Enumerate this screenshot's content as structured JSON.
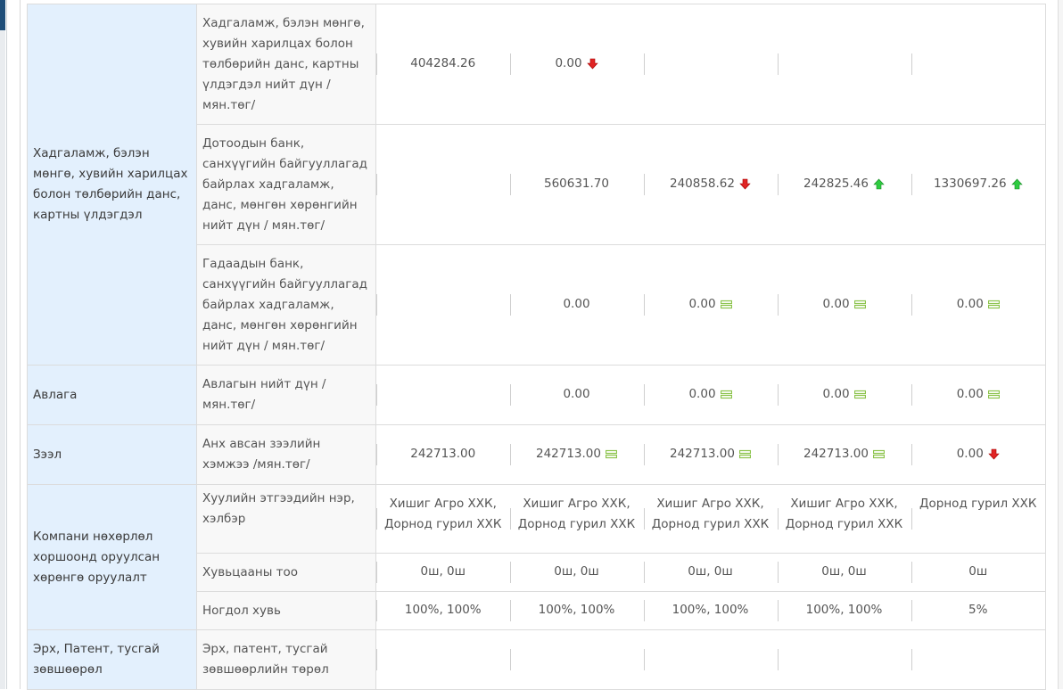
{
  "rows": [
    {
      "category": "Хадгаламж, бэлэн мөнгө, хувийн харилцах болон төлбөрийн данс, картны үлдэгдэл",
      "indicator": "Хадгаламж, бэлэн мөнгө, хувийн харилцах болон төлбөрийн данс, картны үлдэгдэл нийт дүн / мян.төг/",
      "values": [
        {
          "text": "404284.26",
          "icon": "none"
        },
        {
          "text": "0.00",
          "icon": "arrow-down-red-icon"
        },
        {
          "text": "",
          "icon": "none"
        },
        {
          "text": "",
          "icon": "none"
        },
        {
          "text": "",
          "icon": "none"
        }
      ]
    },
    {
      "indicator": "Дотоодын банк, санхүүгийн байгууллагад байрлах хадгаламж, данс, мөнгөн хөрөнгийн нийт дүн / мян.төг/",
      "values": [
        {
          "text": "",
          "icon": "none"
        },
        {
          "text": "560631.70",
          "icon": "none"
        },
        {
          "text": "240858.62",
          "icon": "arrow-down-red-icon"
        },
        {
          "text": "242825.46",
          "icon": "arrow-up-green-icon"
        },
        {
          "text": "1330697.26",
          "icon": "arrow-up-green-icon"
        }
      ]
    },
    {
      "indicator": "Гадаадын банк, санхүүгийн байгууллагад байрлах хадгаламж, данс, мөнгөн хөрөнгийн нийт дүн / мян.төг/",
      "values": [
        {
          "text": "",
          "icon": "none"
        },
        {
          "text": "0.00",
          "icon": "none"
        },
        {
          "text": "0.00",
          "icon": "equal-green-icon"
        },
        {
          "text": "0.00",
          "icon": "equal-green-icon"
        },
        {
          "text": "0.00",
          "icon": "equal-green-icon"
        }
      ]
    },
    {
      "category": "Авлага",
      "indicator": "Авлагын нийт дүн / мян.төг/",
      "values": [
        {
          "text": "",
          "icon": "none"
        },
        {
          "text": "0.00",
          "icon": "none"
        },
        {
          "text": "0.00",
          "icon": "equal-green-icon"
        },
        {
          "text": "0.00",
          "icon": "equal-green-icon"
        },
        {
          "text": "0.00",
          "icon": "equal-green-icon"
        }
      ]
    },
    {
      "category": "Зээл",
      "indicator": "Анх авсан зээлийн хэмжээ /мян.төг/",
      "values": [
        {
          "text": "242713.00",
          "icon": "none"
        },
        {
          "text": "242713.00",
          "icon": "equal-green-icon"
        },
        {
          "text": "242713.00",
          "icon": "equal-green-icon"
        },
        {
          "text": "242713.00",
          "icon": "equal-green-icon"
        },
        {
          "text": "0.00",
          "icon": "arrow-down-red-icon"
        }
      ]
    },
    {
      "category": "Компани нөхөрлөл хоршоонд оруулсан хөрөнгө оруулалт",
      "indicator": "Хуулийн этгээдийн нэр, хэлбэр",
      "values": [
        {
          "text": "Хишиг Агро ХХК, Дорнод гурил ХХК",
          "icon": "none"
        },
        {
          "text": "Хишиг Агро ХХК, Дорнод гурил ХХК",
          "icon": "none"
        },
        {
          "text": "Хишиг Агро ХХК, Дорнод гурил ХХК",
          "icon": "none"
        },
        {
          "text": "Хишиг Агро ХХК, Дорнод гурил ХХК",
          "icon": "none"
        },
        {
          "text": "Дорнод гурил ХХК",
          "icon": "none"
        }
      ]
    },
    {
      "indicator": "Хувьцааны тоо",
      "values": [
        {
          "text": "0ш, 0ш",
          "icon": "none"
        },
        {
          "text": "0ш, 0ш",
          "icon": "none"
        },
        {
          "text": "0ш, 0ш",
          "icon": "none"
        },
        {
          "text": "0ш, 0ш",
          "icon": "none"
        },
        {
          "text": "0ш",
          "icon": "none"
        }
      ]
    },
    {
      "indicator": "Ногдол хувь",
      "values": [
        {
          "text": "100%, 100%",
          "icon": "none"
        },
        {
          "text": "100%, 100%",
          "icon": "none"
        },
        {
          "text": "100%, 100%",
          "icon": "none"
        },
        {
          "text": "100%, 100%",
          "icon": "none"
        },
        {
          "text": "5%",
          "icon": "none"
        }
      ]
    },
    {
      "category": "Эрх, Патент, тусгай зөвшөөрөл",
      "indicator": "Эрх, патент, тусгай зөвшөөрлийн төрөл",
      "values": [
        {
          "text": "",
          "icon": "none"
        },
        {
          "text": "",
          "icon": "none"
        },
        {
          "text": "",
          "icon": "none"
        },
        {
          "text": "",
          "icon": "none"
        },
        {
          "text": "",
          "icon": "none"
        }
      ]
    }
  ],
  "colors": {
    "category_bg": "#e3f0fd",
    "indicator_bg": "#f8f8f8",
    "arrow_down": "#e02424",
    "arrow_up": "#2ecc40",
    "equal": "#8bc34a"
  }
}
